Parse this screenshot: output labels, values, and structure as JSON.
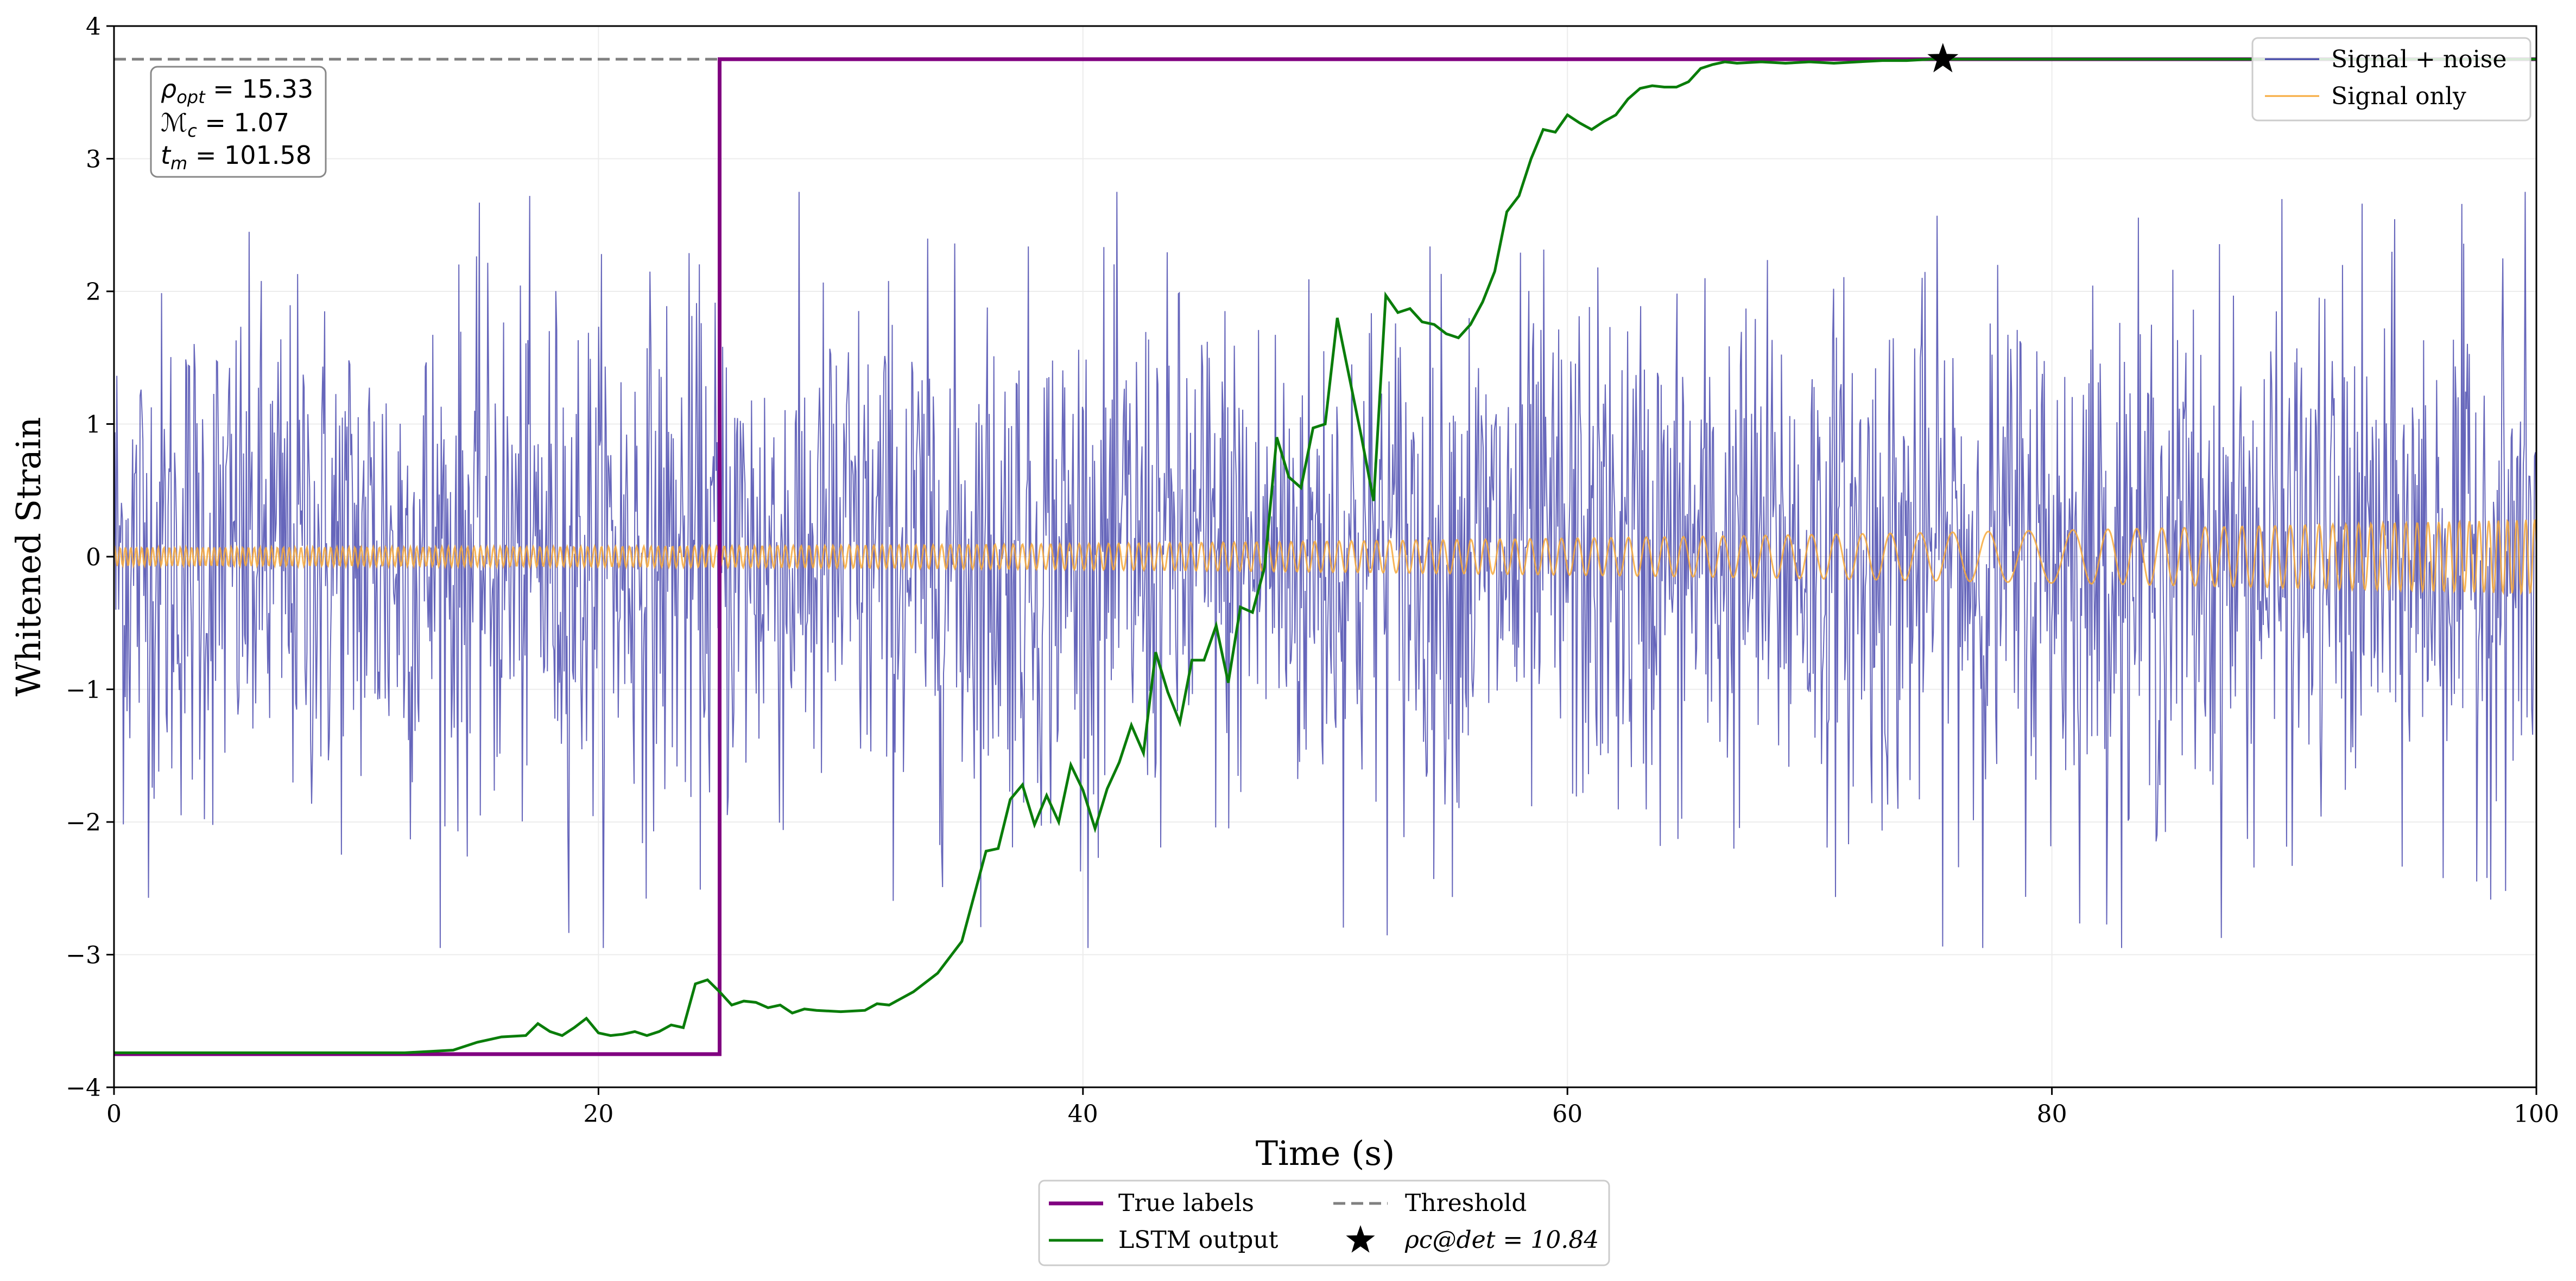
{
  "chart_data": {
    "type": "line",
    "title": "",
    "xlabel": "Time (s)",
    "ylabel": "Whitened Strain",
    "xlim": [
      0,
      100
    ],
    "ylim": [
      -4,
      4
    ],
    "x_ticks": [
      0,
      20,
      40,
      60,
      80,
      100
    ],
    "x_tick_labels": [
      "0",
      "20",
      "40",
      "60",
      "80",
      "100"
    ],
    "y_ticks": [
      -4,
      -3,
      -2,
      -1,
      0,
      1,
      2,
      3,
      4
    ],
    "y_tick_labels": [
      "−4",
      "−3",
      "−2",
      "−1",
      "0",
      "1",
      "2",
      "3",
      "4"
    ],
    "grid": true,
    "threshold": 3.75,
    "label_low": -3.75,
    "label_high": 3.75,
    "label_step_time": 25,
    "noise_std": 1.0,
    "lstm_output": {
      "x": [
        0,
        5,
        10,
        12,
        14,
        15,
        16,
        17,
        17.5,
        18,
        18.5,
        19,
        19.5,
        20,
        20.5,
        21,
        21.5,
        22,
        22.5,
        23,
        23.5,
        24,
        24.5,
        25,
        25.5,
        26,
        26.5,
        27,
        27.5,
        28,
        28.5,
        29,
        30,
        31,
        31.5,
        32,
        33,
        34,
        35,
        36,
        36.5,
        37,
        37.5,
        38,
        38.5,
        39,
        39.5,
        40,
        40.5,
        41,
        41.5,
        42,
        42.5,
        43,
        43.5,
        44,
        44.5,
        45,
        45.5,
        46,
        46.5,
        47,
        47.5,
        48,
        48.5,
        49,
        49.5,
        50,
        50.5,
        51,
        51.5,
        52,
        52.5,
        53,
        53.5,
        54,
        54.5,
        55,
        55.5,
        56,
        56.5,
        57,
        57.5,
        58,
        58.5,
        59,
        59.5,
        60,
        60.5,
        61,
        61.5,
        62,
        62.5,
        63,
        63.5,
        64,
        64.5,
        65,
        65.5,
        66,
        66.5,
        67,
        68,
        69,
        70,
        71,
        72,
        73,
        74,
        75,
        75.5
      ],
      "y": [
        -3.74,
        -3.74,
        -3.74,
        -3.74,
        -3.72,
        -3.66,
        -3.62,
        -3.61,
        -3.52,
        -3.58,
        -3.61,
        -3.55,
        -3.48,
        -3.59,
        -3.61,
        -3.6,
        -3.58,
        -3.61,
        -3.58,
        -3.53,
        -3.55,
        -3.22,
        -3.19,
        -3.28,
        -3.38,
        -3.35,
        -3.36,
        -3.4,
        -3.38,
        -3.44,
        -3.41,
        -3.42,
        -3.43,
        -3.42,
        -3.37,
        -3.38,
        -3.28,
        -3.14,
        -2.9,
        -2.22,
        -2.2,
        -1.83,
        -1.72,
        -2.02,
        -1.8,
        -2.0,
        -1.57,
        -1.76,
        -2.05,
        -1.75,
        -1.55,
        -1.27,
        -1.48,
        -0.72,
        -1.02,
        -1.25,
        -0.78,
        -0.78,
        -0.52,
        -0.95,
        -0.38,
        -0.42,
        -0.08,
        0.9,
        0.6,
        0.52,
        0.97,
        1.0,
        1.8,
        1.35,
        0.9,
        0.42,
        1.97,
        1.84,
        1.87,
        1.77,
        1.75,
        1.68,
        1.65,
        1.75,
        1.92,
        2.15,
        2.6,
        2.72,
        3.0,
        3.22,
        3.2,
        3.33,
        3.27,
        3.22,
        3.28,
        3.33,
        3.45,
        3.53,
        3.55,
        3.54,
        3.54,
        3.58,
        3.68,
        3.71,
        3.73,
        3.72,
        3.73,
        3.72,
        3.73,
        3.72,
        3.73,
        3.74,
        3.74,
        3.75,
        3.75
      ]
    },
    "signal_only": {
      "description_of_shape": "chirp",
      "x_start": 0,
      "x_end": 100,
      "amplitude_start": 0.07,
      "amplitude_end": 0.28
    },
    "detection_marker": {
      "x": 75.5,
      "y": 3.75
    },
    "legend_upper": [
      "Signal + noise",
      "Signal only"
    ],
    "legend_upper_position": "top-right",
    "legend_lower": [
      "True labels",
      "Threshold",
      "LSTM output",
      "ρc@det = 10.84"
    ],
    "legend_lower_position": "bottom-center",
    "annotation_box": {
      "position": "top-left",
      "rho_opt": "15.33",
      "mc": "1.07",
      "tm": "101.58"
    },
    "colors": {
      "noise": "#3b3ba8",
      "signal": "#f7a93b",
      "true_labels": "#800080",
      "lstm": "#0a7d0a",
      "threshold": "#808080",
      "marker": "#000000",
      "grid": "#ececec"
    }
  }
}
